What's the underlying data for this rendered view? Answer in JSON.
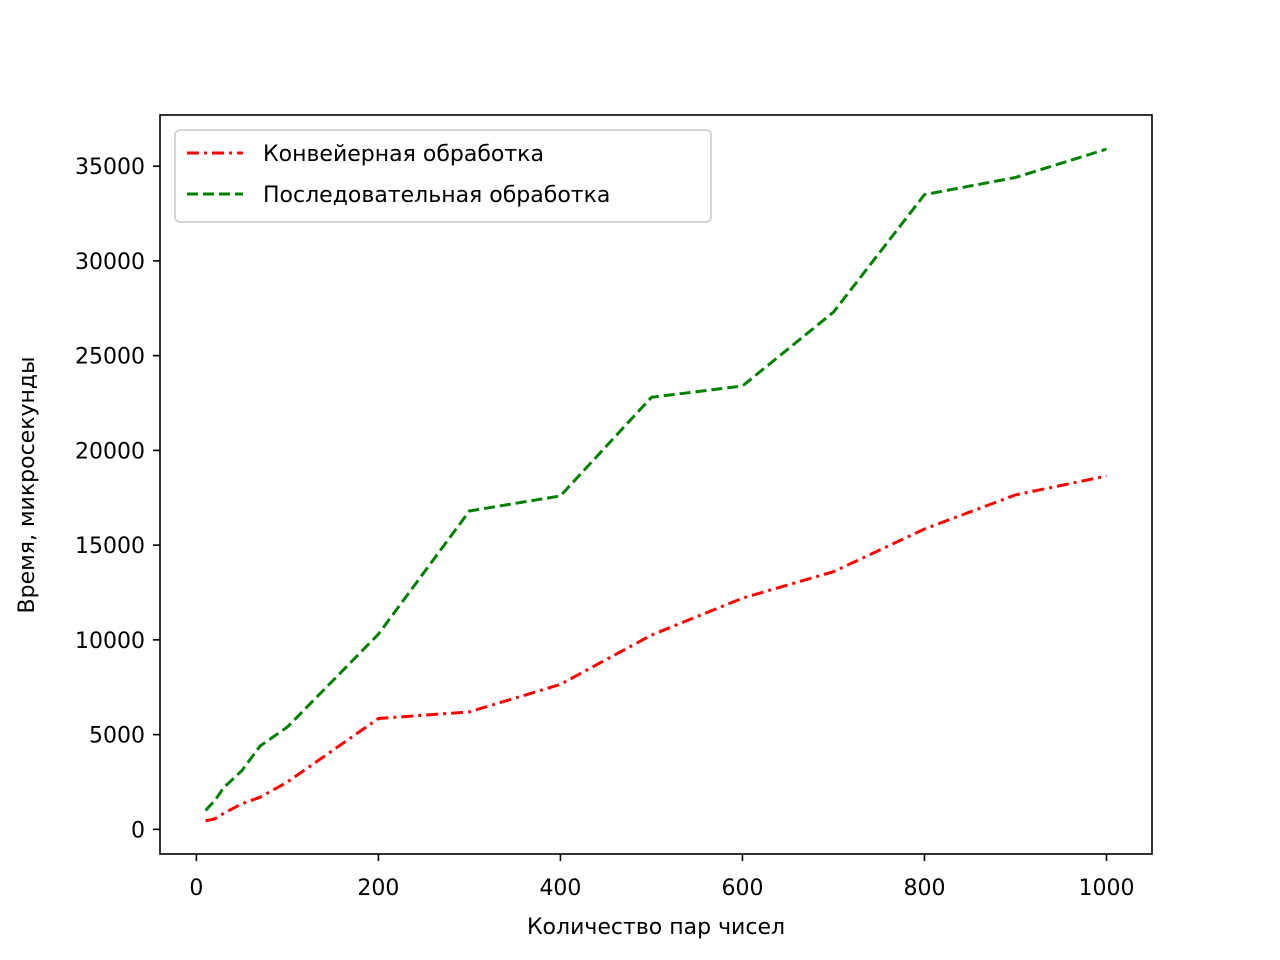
{
  "chart_data": {
    "type": "line",
    "title": "",
    "xlabel": "Количество пар чисел",
    "ylabel": "Время, микросекунды",
    "xlim": [
      -40,
      1050
    ],
    "ylim": [
      -1300,
      37700
    ],
    "xticks": [
      0,
      200,
      400,
      600,
      800,
      1000
    ],
    "yticks": [
      0,
      5000,
      10000,
      15000,
      20000,
      25000,
      30000,
      35000
    ],
    "grid": false,
    "legend_position": "upper-left",
    "series": [
      {
        "name": "Конвейерная обработка",
        "color": "#ff0000",
        "style": "dashdot",
        "x": [
          10,
          20,
          30,
          50,
          70,
          100,
          200,
          300,
          400,
          500,
          600,
          700,
          800,
          900,
          1000
        ],
        "y": [
          450,
          550,
          850,
          1350,
          1700,
          2500,
          5850,
          6200,
          7650,
          10250,
          12200,
          13600,
          15850,
          17650,
          18650
        ]
      },
      {
        "name": "Последовательная обработка",
        "color": "#008000",
        "style": "dashed",
        "x": [
          10,
          20,
          30,
          50,
          70,
          100,
          200,
          300,
          400,
          500,
          600,
          700,
          800,
          900,
          1000
        ],
        "y": [
          1000,
          1500,
          2200,
          3100,
          4400,
          5400,
          10300,
          16800,
          17600,
          22800,
          23400,
          27300,
          33500,
          34400,
          35900
        ]
      }
    ]
  }
}
